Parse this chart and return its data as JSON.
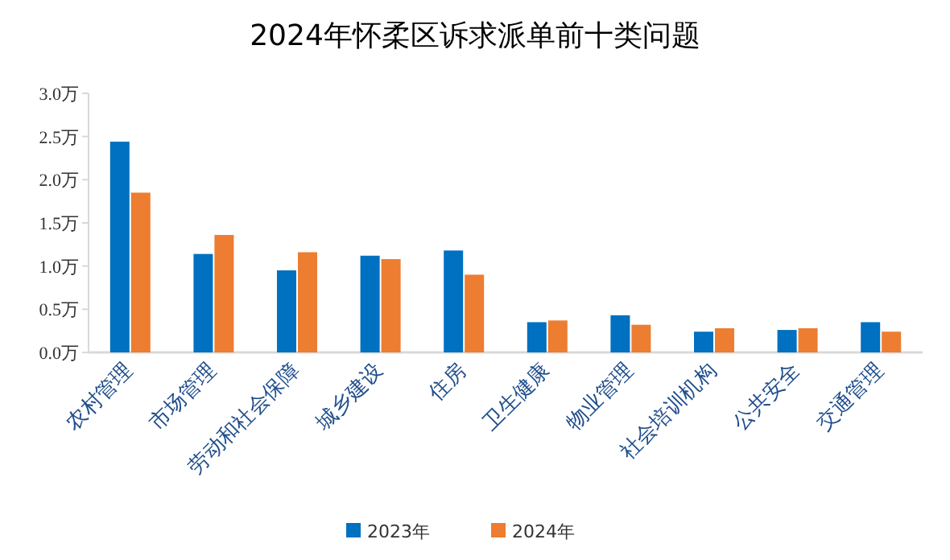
{
  "chart_data": {
    "type": "bar",
    "title": "2024年怀柔区诉求派单前十类问题",
    "categories": [
      "农村管理",
      "市场管理",
      "劳动和社会保障",
      "城乡建设",
      "住房",
      "卫生健康",
      "物业管理",
      "社会培训机构",
      "公共安全",
      "交通管理"
    ],
    "series": [
      {
        "name": "2023年",
        "color": "#0070c0",
        "values": [
          2.44,
          1.14,
          0.95,
          1.12,
          1.18,
          0.35,
          0.43,
          0.24,
          0.26,
          0.35
        ]
      },
      {
        "name": "2024年",
        "color": "#ed7d31",
        "values": [
          1.85,
          1.36,
          1.16,
          1.08,
          0.9,
          0.37,
          0.32,
          0.28,
          0.28,
          0.24
        ]
      }
    ],
    "ylim": [
      0,
      3
    ],
    "yticks": [
      {
        "value": 0,
        "label": "0.0万"
      },
      {
        "value": 0.5,
        "label": "0.5万"
      },
      {
        "value": 1,
        "label": "1.0万"
      },
      {
        "value": 1.5,
        "label": "1.5万"
      },
      {
        "value": 2,
        "label": "2.0万"
      },
      {
        "value": 2.5,
        "label": "2.5万"
      },
      {
        "value": 3,
        "label": "3.0万"
      }
    ],
    "legend": "bottom",
    "grid": false
  }
}
